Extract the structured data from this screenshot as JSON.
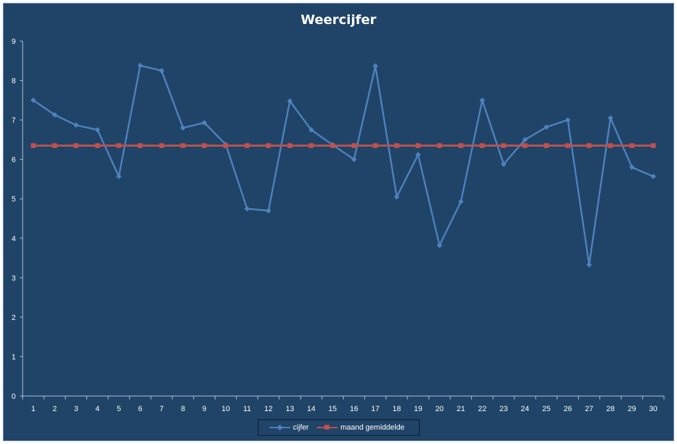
{
  "colors": {
    "background": "#1f4467",
    "axis": "#b4c6d9",
    "text": "#ffffff",
    "series_cijfer": "#4f81bd",
    "series_gemiddelde": "#c0504d"
  },
  "chart_data": {
    "type": "line",
    "title": "Weercijfer",
    "xlabel": "",
    "ylabel": "",
    "ylim": [
      0,
      9
    ],
    "yticks": [
      0,
      1,
      2,
      3,
      4,
      5,
      6,
      7,
      8,
      9
    ],
    "grid": false,
    "legend_position": "bottom",
    "categories": [
      "1",
      "2",
      "3",
      "4",
      "5",
      "6",
      "7",
      "8",
      "9",
      "10",
      "11",
      "12",
      "13",
      "14",
      "15",
      "16",
      "17",
      "18",
      "19",
      "20",
      "21",
      "22",
      "23",
      "24",
      "25",
      "26",
      "27",
      "28",
      "29",
      "30"
    ],
    "series": [
      {
        "name": "cijfer",
        "marker": "diamond",
        "values": [
          7.5,
          7.13,
          6.87,
          6.75,
          5.57,
          8.38,
          8.25,
          6.8,
          6.93,
          6.38,
          4.75,
          4.7,
          7.48,
          6.75,
          6.37,
          6.0,
          8.37,
          5.05,
          6.12,
          3.82,
          4.93,
          7.5,
          5.88,
          6.5,
          6.82,
          7.0,
          3.33,
          7.05,
          5.8,
          5.57
        ]
      },
      {
        "name": "maand gemiddelde",
        "marker": "square",
        "values": [
          6.35,
          6.35,
          6.35,
          6.35,
          6.35,
          6.35,
          6.35,
          6.35,
          6.35,
          6.35,
          6.35,
          6.35,
          6.35,
          6.35,
          6.35,
          6.35,
          6.35,
          6.35,
          6.35,
          6.35,
          6.35,
          6.35,
          6.35,
          6.35,
          6.35,
          6.35,
          6.35,
          6.35,
          6.35,
          6.35
        ]
      }
    ]
  }
}
